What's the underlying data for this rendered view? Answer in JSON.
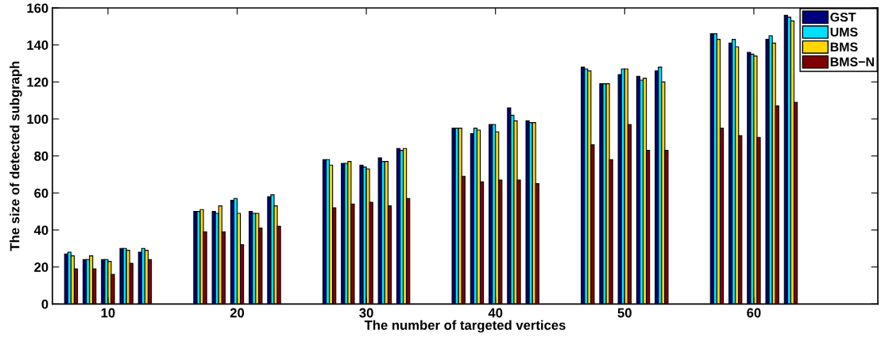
{
  "chart_data": {
    "type": "bar",
    "xlabel": "The number of targeted vertices",
    "ylabel": "The size of detected subgraph",
    "x": [
      7.14,
      8.57,
      10,
      11.43,
      12.86,
      17.14,
      18.57,
      20,
      21.43,
      22.86,
      27.14,
      28.57,
      30,
      31.43,
      32.86,
      37.14,
      38.57,
      40,
      41.43,
      42.86,
      47.14,
      48.57,
      50,
      51.43,
      52.86,
      57.14,
      58.57,
      60,
      61.43,
      62.86
    ],
    "series": [
      {
        "name": "GST",
        "color": "#00007f",
        "values": [
          27,
          24,
          24,
          30,
          28,
          50,
          50,
          56,
          50,
          58,
          78,
          76,
          75,
          79,
          84,
          95,
          92,
          97,
          106,
          99,
          128,
          119,
          124,
          123,
          126,
          146,
          141,
          136,
          143,
          156
        ]
      },
      {
        "name": "UMS",
        "color": "#00dfff",
        "values": [
          28,
          24,
          24,
          30,
          30,
          50,
          49,
          57,
          49,
          59,
          78,
          76,
          74,
          77,
          83,
          95,
          95,
          97,
          102,
          98,
          127,
          119,
          127,
          121,
          128,
          146,
          143,
          135,
          145,
          155
        ]
      },
      {
        "name": "BMS",
        "color": "#ffd700",
        "values": [
          26,
          26,
          23,
          29,
          29,
          51,
          53,
          49,
          49,
          53,
          75,
          77,
          73,
          77,
          84,
          95,
          94,
          93,
          99,
          98,
          126,
          119,
          127,
          122,
          120,
          143,
          139,
          134,
          141,
          153
        ]
      },
      {
        "name": "BMS−N",
        "color": "#7f0000",
        "values": [
          19,
          19,
          16,
          22,
          24,
          39,
          39,
          32,
          41,
          42,
          52,
          54,
          55,
          53,
          57,
          69,
          66,
          67,
          67,
          65,
          86,
          78,
          97,
          83,
          83,
          95,
          91,
          90,
          107,
          109
        ]
      }
    ],
    "xlim": [
      5.7,
      69.6
    ],
    "xticks": [
      10,
      20,
      30,
      40,
      50,
      60
    ],
    "ylim": [
      0,
      160
    ],
    "yticks": [
      0,
      20,
      40,
      60,
      80,
      100,
      120,
      140,
      160
    ],
    "legend": "top right",
    "grid": false
  }
}
